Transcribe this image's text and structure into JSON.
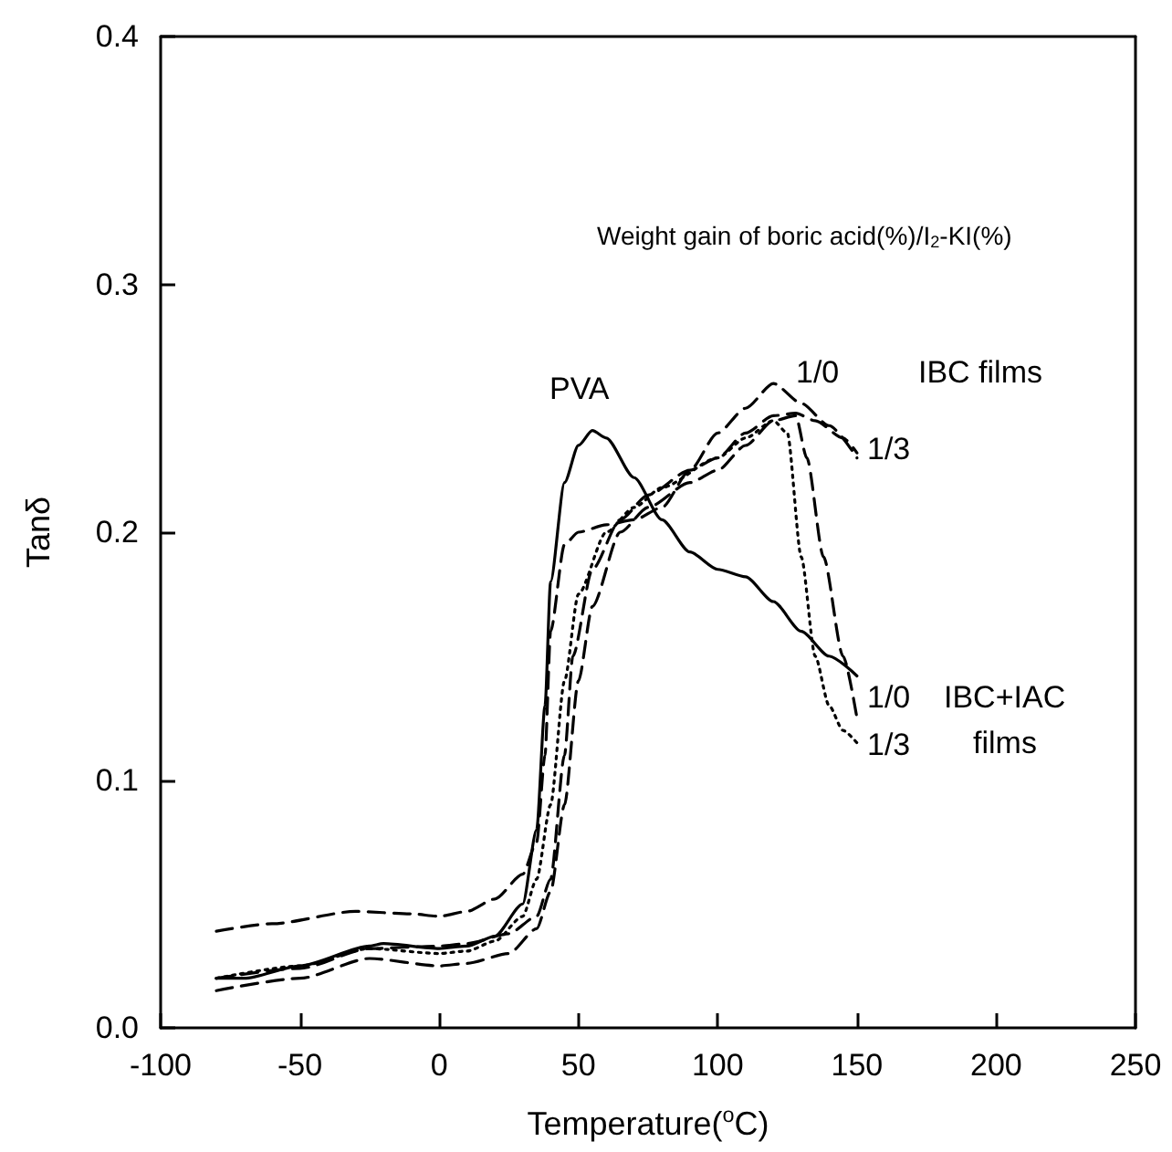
{
  "chart_data": {
    "type": "line",
    "xlabel": "Temperature($^{o}$C)",
    "ylabel": "Tanδ",
    "xlim": [
      -100,
      250
    ],
    "xticks": [
      -100,
      -50,
      0,
      50,
      100,
      150,
      200,
      250
    ],
    "ylim": [
      0,
      0.4
    ],
    "yticks": [
      {
        "value": 0,
        "label": "0.0"
      },
      {
        "value": 0.1,
        "label": "0.1"
      },
      {
        "value": 0.2,
        "label": "0.2"
      },
      {
        "value": 0.3,
        "label": "0.3"
      },
      {
        "value": 0.4,
        "label": "0.4"
      }
    ],
    "grid": false,
    "marker": "none",
    "series": [
      {
        "color": "#000000",
        "line_style": "solid",
        "x": [
          -80,
          -70,
          -50,
          -25,
          -20,
          0,
          10,
          20,
          30,
          35,
          38,
          40,
          45,
          50,
          55,
          60,
          70,
          80,
          90,
          100,
          110,
          120,
          130,
          140,
          150
        ],
        "values": [
          0.02,
          0.02,
          0.025,
          0.033,
          0.034,
          0.032,
          0.033,
          0.037,
          0.05,
          0.08,
          0.13,
          0.18,
          0.22,
          0.235,
          0.241,
          0.238,
          0.222,
          0.205,
          0.192,
          0.185,
          0.182,
          0.172,
          0.16,
          0.15,
          0.142
        ]
      },
      {
        "color": "#000000",
        "line_style": "dashed",
        "x": [
          -80,
          -60,
          -30,
          -10,
          0,
          10,
          20,
          30,
          35,
          38,
          40,
          45,
          50,
          60,
          70,
          80,
          90,
          100,
          110,
          120,
          130,
          140,
          150
        ],
        "values": [
          0.039,
          0.042,
          0.047,
          0.046,
          0.045,
          0.047,
          0.052,
          0.062,
          0.075,
          0.11,
          0.16,
          0.195,
          0.2,
          0.203,
          0.205,
          0.21,
          0.225,
          0.24,
          0.25,
          0.26,
          0.252,
          0.243,
          0.23
        ]
      },
      {
        "color": "#000000",
        "line_style": "dashed",
        "x": [
          -80,
          -50,
          -25,
          0,
          10,
          25,
          35,
          40,
          45,
          48,
          55,
          65,
          75,
          90,
          100,
          110,
          120,
          128,
          135,
          145,
          150
        ],
        "values": [
          0.02,
          0.024,
          0.032,
          0.033,
          0.034,
          0.038,
          0.045,
          0.06,
          0.11,
          0.15,
          0.185,
          0.205,
          0.215,
          0.225,
          0.23,
          0.24,
          0.247,
          0.248,
          0.245,
          0.238,
          0.232
        ]
      },
      {
        "color": "#000000",
        "line_style": "dashed",
        "x": [
          -80,
          -50,
          -25,
          0,
          10,
          25,
          35,
          40,
          45,
          50,
          55,
          65,
          75,
          90,
          100,
          110,
          120,
          128,
          132,
          138,
          145,
          150
        ],
        "values": [
          0.015,
          0.02,
          0.028,
          0.025,
          0.026,
          0.03,
          0.04,
          0.055,
          0.09,
          0.14,
          0.17,
          0.2,
          0.21,
          0.22,
          0.225,
          0.235,
          0.245,
          0.247,
          0.23,
          0.19,
          0.15,
          0.125
        ]
      },
      {
        "color": "#000000",
        "line_style": "dotted",
        "x": [
          -80,
          -50,
          -25,
          0,
          10,
          20,
          30,
          35,
          40,
          45,
          50,
          60,
          70,
          80,
          100,
          110,
          120,
          125,
          130,
          135,
          140,
          145,
          150
        ],
        "values": [
          0.02,
          0.025,
          0.032,
          0.03,
          0.031,
          0.035,
          0.045,
          0.06,
          0.09,
          0.14,
          0.175,
          0.2,
          0.21,
          0.218,
          0.23,
          0.238,
          0.245,
          0.24,
          0.19,
          0.15,
          0.13,
          0.12,
          0.115
        ]
      }
    ],
    "annotations": [
      "Weight gain of boric acid(%)/I$_{2}$-KI(%)",
      "PVA",
      "1/0",
      "IBC films",
      "1/3",
      "1/0",
      "IBC+IAC",
      "films",
      "1/3"
    ]
  }
}
